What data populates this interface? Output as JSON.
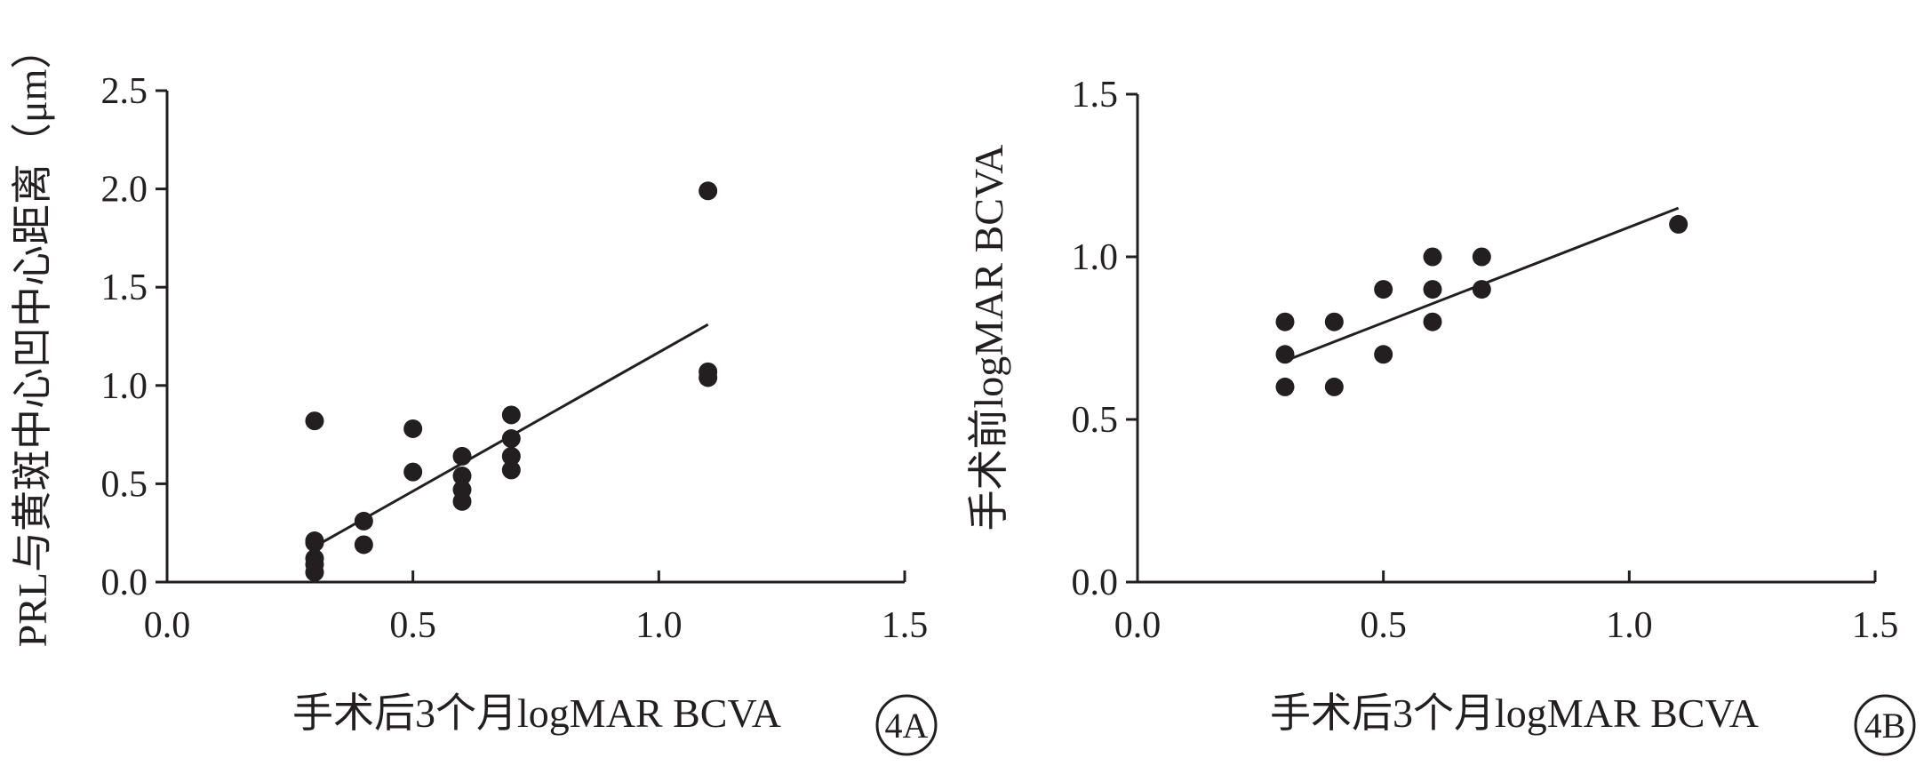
{
  "chart_data": [
    {
      "type": "scatter",
      "title": "",
      "xlabel": "手术后3个月logMAR BCVA",
      "ylabel": "PRL与黄斑中心凹中心距离（μm）",
      "xlim": [
        0,
        1.5
      ],
      "ylim": [
        0,
        2.5
      ],
      "x_ticks": [
        0.0,
        0.5,
        1.0,
        1.5
      ],
      "x_tick_labels": [
        "0.0",
        "0.5",
        "1.0",
        "1.5"
      ],
      "y_ticks": [
        0.0,
        0.5,
        1.0,
        1.5,
        2.0,
        2.5
      ],
      "y_tick_labels": [
        "0.0",
        "0.5",
        "1.0",
        "1.5",
        "2.0",
        "2.5"
      ],
      "grid": false,
      "legend": "none",
      "panel_label": "4A",
      "points": [
        [
          0.3,
          0.82
        ],
        [
          0.3,
          0.21
        ],
        [
          0.3,
          0.2
        ],
        [
          0.3,
          0.12
        ],
        [
          0.3,
          0.09
        ],
        [
          0.3,
          0.05
        ],
        [
          0.4,
          0.31
        ],
        [
          0.4,
          0.19
        ],
        [
          0.5,
          0.78
        ],
        [
          0.5,
          0.56
        ],
        [
          0.6,
          0.64
        ],
        [
          0.6,
          0.54
        ],
        [
          0.6,
          0.47
        ],
        [
          0.6,
          0.41
        ],
        [
          0.7,
          0.85
        ],
        [
          0.7,
          0.73
        ],
        [
          0.7,
          0.64
        ],
        [
          0.7,
          0.57
        ],
        [
          1.1,
          1.99
        ],
        [
          1.1,
          1.07
        ],
        [
          1.1,
          1.04
        ]
      ],
      "trendline": {
        "x": [
          0.3,
          1.1
        ],
        "y": [
          0.18,
          1.31
        ]
      }
    },
    {
      "type": "scatter",
      "title": "",
      "xlabel": "手术后3个月logMAR BCVA",
      "ylabel": "手术前logMAR BCVA",
      "xlim": [
        0,
        1.5
      ],
      "ylim": [
        0,
        1.5
      ],
      "x_ticks": [
        0.0,
        0.5,
        1.0,
        1.5
      ],
      "x_tick_labels": [
        "0.0",
        "0.5",
        "1.0",
        "1.5"
      ],
      "y_ticks": [
        0.0,
        0.5,
        1.0,
        1.5
      ],
      "y_tick_labels": [
        "0.0",
        "0.5",
        "1.0",
        "1.5"
      ],
      "grid": false,
      "legend": "none",
      "panel_label": "4B",
      "points": [
        [
          0.3,
          0.8
        ],
        [
          0.3,
          0.7
        ],
        [
          0.3,
          0.6
        ],
        [
          0.4,
          0.8
        ],
        [
          0.4,
          0.6
        ],
        [
          0.5,
          0.9
        ],
        [
          0.5,
          0.7
        ],
        [
          0.6,
          1.0
        ],
        [
          0.6,
          0.9
        ],
        [
          0.6,
          0.8
        ],
        [
          0.7,
          1.0
        ],
        [
          0.7,
          0.9
        ],
        [
          1.1,
          1.1
        ]
      ],
      "trendline": {
        "x": [
          0.3,
          1.1
        ],
        "y": [
          0.68,
          1.15
        ]
      }
    }
  ]
}
